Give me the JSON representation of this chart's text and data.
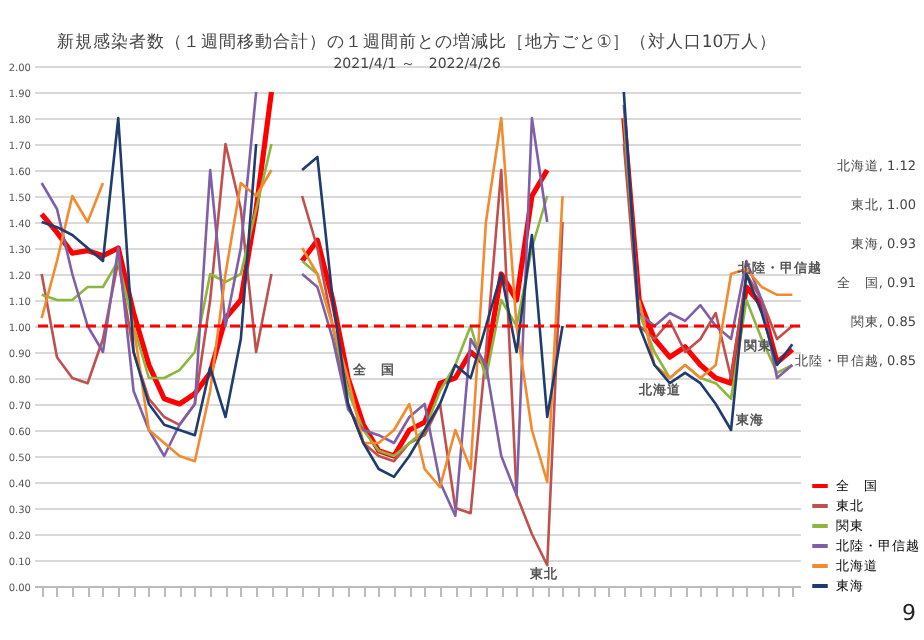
{
  "chart_data": {
    "type": "line",
    "title": "新規感染者数（１週間移動合計）の１週間前との増減比［地方ごと①］（対人口10万人）",
    "subtitle": "2021/4/1 ～　2022/4/26",
    "categories": [
      null,
      null,
      null,
      null,
      null,
      null,
      null,
      null,
      null,
      null,
      null,
      null,
      null,
      null,
      null,
      null,
      null,
      null,
      null,
      null,
      null,
      null,
      null,
      null,
      null,
      null,
      null,
      null,
      null,
      null,
      null,
      null,
      null,
      null,
      null,
      null,
      null,
      null,
      null,
      null,
      null,
      null,
      null,
      null,
      null,
      null,
      null,
      null,
      null,
      null
    ],
    "series": [
      {
        "name": "全　国",
        "color": "#ff0000",
        "values": [
          1.43,
          1.36,
          1.28,
          1.29,
          1.27,
          1.3,
          1.05,
          0.85,
          0.72,
          0.7,
          0.74,
          0.82,
          1.03,
          1.1,
          1.45,
          1.9,
          null,
          1.25,
          1.33,
          1.1,
          0.8,
          0.62,
          0.52,
          0.5,
          0.6,
          0.63,
          0.78,
          0.8,
          0.9,
          0.85,
          1.2,
          1.1,
          1.5,
          1.6,
          null,
          null,
          null,
          null,
          1.8,
          1.1,
          0.95,
          0.88,
          0.92,
          0.85,
          0.8,
          0.78,
          1.15,
          1.08,
          0.86,
          0.91
        ]
      },
      {
        "name": "東北",
        "color": "#c0504d",
        "values": [
          1.2,
          0.88,
          0.8,
          0.78,
          0.95,
          1.25,
          0.9,
          0.72,
          0.65,
          0.62,
          0.7,
          1.1,
          1.7,
          1.45,
          0.9,
          1.2,
          null,
          1.5,
          1.3,
          1.0,
          0.7,
          0.55,
          0.5,
          0.48,
          0.55,
          0.58,
          0.7,
          0.3,
          0.28,
          0.9,
          1.6,
          0.35,
          0.2,
          0.08,
          1.4,
          null,
          null,
          null,
          1.7,
          1.0,
          0.95,
          1.02,
          0.9,
          0.95,
          1.05,
          0.8,
          1.2,
          1.1,
          0.95,
          1.0
        ]
      },
      {
        "name": "関東",
        "color": "#8db63f",
        "values": [
          1.12,
          1.1,
          1.1,
          1.15,
          1.15,
          1.25,
          1.0,
          0.8,
          0.8,
          0.83,
          0.9,
          1.2,
          1.17,
          1.2,
          1.45,
          1.7,
          null,
          1.25,
          1.2,
          1.0,
          0.75,
          0.6,
          0.52,
          0.5,
          0.55,
          0.6,
          0.75,
          0.85,
          1.0,
          0.8,
          1.1,
          1.0,
          1.3,
          1.5,
          null,
          null,
          null,
          null,
          1.8,
          1.05,
          0.9,
          0.8,
          0.85,
          0.8,
          0.78,
          0.72,
          1.1,
          0.95,
          0.82,
          0.85
        ]
      },
      {
        "name": "北陸・甲信越",
        "color": "#7f5fa8",
        "values": [
          1.55,
          1.45,
          1.2,
          1.0,
          0.9,
          1.3,
          0.75,
          0.6,
          0.5,
          0.62,
          0.7,
          1.6,
          1.0,
          1.3,
          1.9,
          null,
          null,
          1.2,
          1.15,
          0.95,
          0.68,
          0.6,
          0.58,
          0.55,
          0.65,
          0.7,
          0.4,
          0.27,
          0.95,
          0.85,
          0.5,
          0.35,
          1.8,
          1.4,
          null,
          null,
          null,
          null,
          1.85,
          1.05,
          1.0,
          1.05,
          1.02,
          1.08,
          1.0,
          0.95,
          1.25,
          1.1,
          0.8,
          0.85
        ]
      },
      {
        "name": "北海道",
        "color": "#f28a30",
        "values": [
          1.03,
          1.25,
          1.5,
          1.4,
          1.55,
          null,
          1.0,
          0.6,
          0.55,
          0.5,
          0.48,
          0.75,
          1.2,
          1.55,
          1.5,
          1.6,
          null,
          1.3,
          1.2,
          1.0,
          0.8,
          0.55,
          0.55,
          0.6,
          0.7,
          0.45,
          0.38,
          0.6,
          0.45,
          1.4,
          1.8,
          1.0,
          0.6,
          0.4,
          1.5,
          null,
          null,
          null,
          null,
          1.1,
          0.85,
          0.8,
          0.85,
          0.8,
          0.85,
          1.2,
          1.22,
          1.15,
          1.12,
          1.12
        ]
      },
      {
        "name": "東海",
        "color": "#1f3c6e",
        "values": [
          1.4,
          1.38,
          1.35,
          1.3,
          1.25,
          1.8,
          0.9,
          0.7,
          0.62,
          0.6,
          0.58,
          0.84,
          0.65,
          0.95,
          1.7,
          null,
          null,
          1.6,
          1.65,
          1.1,
          0.7,
          0.55,
          0.45,
          0.42,
          0.5,
          0.6,
          0.7,
          0.85,
          0.8,
          1.0,
          1.2,
          0.9,
          1.35,
          0.65,
          1.0,
          null,
          null,
          null,
          1.9,
          1.0,
          0.85,
          0.78,
          0.82,
          0.78,
          0.7,
          0.6,
          1.2,
          1.05,
          0.85,
          0.93
        ]
      }
    ],
    "ylim": [
      0,
      2
    ],
    "yticks": [
      {
        "value": 0,
        "label": "0.00"
      },
      {
        "value": 0.1,
        "label": "0.10"
      },
      {
        "value": 0.2,
        "label": "0.20"
      },
      {
        "value": 0.3,
        "label": "0.30"
      },
      {
        "value": 0.4,
        "label": "0.40"
      },
      {
        "value": 0.5,
        "label": "0.50"
      },
      {
        "value": 0.6,
        "label": "0.60"
      },
      {
        "value": 0.7,
        "label": "0.70"
      },
      {
        "value": 0.8,
        "label": "0.80"
      },
      {
        "value": 0.9,
        "label": "0.90"
      },
      {
        "value": 1,
        "label": "1.00"
      },
      {
        "value": 1.1,
        "label": "1.10"
      },
      {
        "value": 1.2,
        "label": "1.20"
      },
      {
        "value": 1.3,
        "label": "1.30"
      },
      {
        "value": 1.4,
        "label": "1.40"
      },
      {
        "value": 1.5,
        "label": "1.50"
      },
      {
        "value": 1.6,
        "label": "1.60"
      },
      {
        "value": 1.7,
        "label": "1.70"
      },
      {
        "value": 1.8,
        "label": "1.80"
      },
      {
        "value": 1.9,
        "label": "1.90"
      },
      {
        "value": 2,
        "label": "2.00"
      }
    ],
    "ref_lines": [
      {
        "axis": "y",
        "value": 1,
        "color": "#ff0000",
        "line_style": "dashed"
      }
    ],
    "annotations": [
      "全　国",
      "東北",
      "北海道",
      "東海",
      "北陸・甲信越",
      "関東",
      "北海道, 1.12",
      "東北, 1.00",
      "東海, 0.93",
      "全　国, 0.91",
      "関東, 0.85",
      "北陸・甲信越, 0.85",
      "9"
    ],
    "grid": "y",
    "legend": "right",
    "tick_labels": "y",
    "line_style": "solid",
    "marker": "none"
  }
}
